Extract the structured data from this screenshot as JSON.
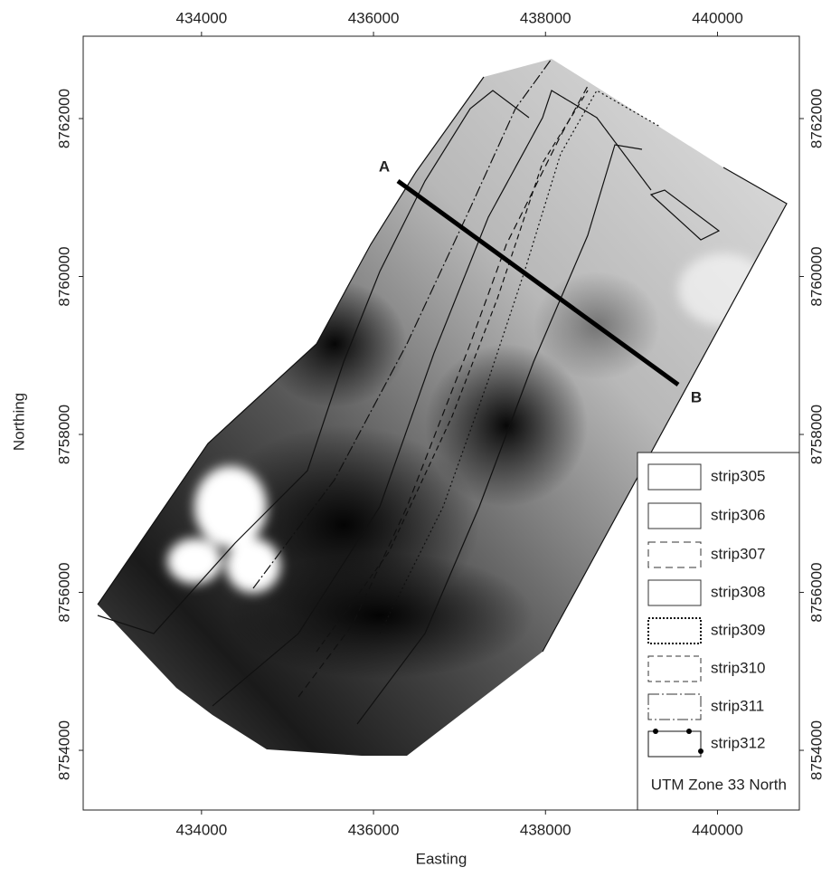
{
  "map": {
    "x_axis": {
      "label": "Easting",
      "xlim": [
        432624,
        440952
      ],
      "xticks": [
        434000,
        436000,
        438000,
        440000
      ]
    },
    "y_axis": {
      "label": "Northing",
      "ylim": [
        8753244,
        8763043
      ],
      "yticks": [
        8754000,
        8756000,
        8758000,
        8760000,
        8762000
      ]
    },
    "legend": [
      "strip305",
      "strip306",
      "strip307",
      "strip308",
      "strip309",
      "strip310",
      "strip311",
      "strip312"
    ],
    "section_labels": [
      "A",
      "B"
    ],
    "projection_note": "UTM Zone 33 North"
  }
}
